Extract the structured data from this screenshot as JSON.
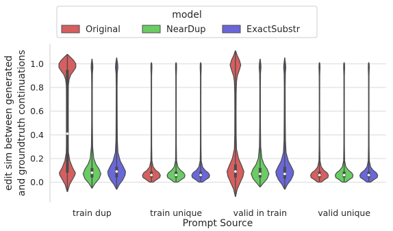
{
  "chart_data": {
    "type": "violin",
    "legend_title": "model",
    "legend_placement": "top",
    "xlabel": "Prompt Source",
    "ylabel_lines": [
      "edit sim between generated",
      "and groundtruth continuations"
    ],
    "ylim": [
      -0.17,
      1.17
    ],
    "yticks": [
      0.0,
      0.2,
      0.4,
      0.6,
      0.8,
      1.0
    ],
    "ytick_labels": [
      "0.0",
      "0.2",
      "0.4",
      "0.6",
      "0.8",
      "1.0"
    ],
    "grid": "horizontal",
    "categories": [
      "train dup",
      "train unique",
      "valid in train",
      "valid unique"
    ],
    "series": [
      {
        "name": "Original",
        "color": "#d65f5f",
        "violins": [
          {
            "range": [
              -0.08,
              1.08
            ],
            "median": 0.41,
            "q1": 0.08,
            "q3": 0.95,
            "profile": [
              [
                -0.08,
                0.02
              ],
              [
                -0.02,
                0.25
              ],
              [
                0.02,
                0.55
              ],
              [
                0.06,
                0.85
              ],
              [
                0.08,
                0.9
              ],
              [
                0.12,
                0.6
              ],
              [
                0.18,
                0.28
              ],
              [
                0.25,
                0.12
              ],
              [
                0.35,
                0.09
              ],
              [
                0.5,
                0.08
              ],
              [
                0.65,
                0.08
              ],
              [
                0.75,
                0.09
              ],
              [
                0.82,
                0.12
              ],
              [
                0.87,
                0.2
              ],
              [
                0.91,
                0.4
              ],
              [
                0.94,
                0.7
              ],
              [
                0.97,
                0.95
              ],
              [
                1.0,
                0.95
              ],
              [
                1.03,
                0.7
              ],
              [
                1.06,
                0.3
              ],
              [
                1.08,
                0.02
              ]
            ]
          },
          {
            "range": [
              0.0,
              1.01
            ],
            "median": 0.06,
            "q1": 0.04,
            "q3": 0.09,
            "profile": [
              [
                0.0,
                0.2
              ],
              [
                0.02,
                0.55
              ],
              [
                0.04,
                0.95
              ],
              [
                0.06,
                1.0
              ],
              [
                0.08,
                0.85
              ],
              [
                0.1,
                0.5
              ],
              [
                0.13,
                0.2
              ],
              [
                0.18,
                0.06
              ],
              [
                0.3,
                0.035
              ],
              [
                0.6,
                0.025
              ],
              [
                0.9,
                0.03
              ],
              [
                0.97,
                0.06
              ],
              [
                1.0,
                0.05
              ],
              [
                1.01,
                0.01
              ]
            ]
          },
          {
            "range": [
              -0.12,
              1.11
            ],
            "median": 0.09,
            "q1": 0.04,
            "q3": 0.15,
            "profile": [
              [
                -0.12,
                0.02
              ],
              [
                -0.06,
                0.2
              ],
              [
                0.0,
                0.55
              ],
              [
                0.05,
                0.85
              ],
              [
                0.09,
                0.95
              ],
              [
                0.14,
                0.7
              ],
              [
                0.2,
                0.35
              ],
              [
                0.28,
                0.12
              ],
              [
                0.4,
                0.08
              ],
              [
                0.6,
                0.07
              ],
              [
                0.75,
                0.08
              ],
              [
                0.85,
                0.12
              ],
              [
                0.9,
                0.22
              ],
              [
                0.95,
                0.45
              ],
              [
                0.99,
                0.6
              ],
              [
                1.03,
                0.45
              ],
              [
                1.07,
                0.2
              ],
              [
                1.11,
                0.02
              ]
            ]
          },
          {
            "range": [
              0.0,
              1.01
            ],
            "median": 0.06,
            "q1": 0.04,
            "q3": 0.09,
            "profile": [
              [
                0.0,
                0.2
              ],
              [
                0.02,
                0.55
              ],
              [
                0.04,
                0.95
              ],
              [
                0.06,
                1.0
              ],
              [
                0.08,
                0.85
              ],
              [
                0.1,
                0.5
              ],
              [
                0.13,
                0.2
              ],
              [
                0.18,
                0.06
              ],
              [
                0.3,
                0.035
              ],
              [
                0.6,
                0.025
              ],
              [
                0.9,
                0.03
              ],
              [
                0.97,
                0.06
              ],
              [
                1.0,
                0.05
              ],
              [
                1.01,
                0.01
              ]
            ]
          }
        ]
      },
      {
        "name": "NearDup",
        "color": "#6acc64",
        "violins": [
          {
            "range": [
              -0.05,
              1.04
            ],
            "median": 0.08,
            "q1": 0.04,
            "q3": 0.12,
            "profile": [
              [
                -0.05,
                0.02
              ],
              [
                -0.01,
                0.35
              ],
              [
                0.03,
                0.8
              ],
              [
                0.07,
                1.0
              ],
              [
                0.11,
                0.8
              ],
              [
                0.15,
                0.45
              ],
              [
                0.2,
                0.2
              ],
              [
                0.3,
                0.07
              ],
              [
                0.5,
                0.04
              ],
              [
                0.8,
                0.035
              ],
              [
                0.92,
                0.05
              ],
              [
                0.97,
                0.1
              ],
              [
                1.0,
                0.08
              ],
              [
                1.04,
                0.01
              ]
            ]
          },
          {
            "range": [
              0.0,
              1.01
            ],
            "median": 0.06,
            "q1": 0.04,
            "q3": 0.09,
            "profile": [
              [
                0.0,
                0.2
              ],
              [
                0.02,
                0.55
              ],
              [
                0.04,
                0.95
              ],
              [
                0.06,
                1.0
              ],
              [
                0.08,
                0.85
              ],
              [
                0.1,
                0.5
              ],
              [
                0.13,
                0.2
              ],
              [
                0.18,
                0.06
              ],
              [
                0.3,
                0.035
              ],
              [
                0.6,
                0.025
              ],
              [
                0.9,
                0.03
              ],
              [
                0.97,
                0.06
              ],
              [
                1.0,
                0.05
              ],
              [
                1.01,
                0.01
              ]
            ]
          },
          {
            "range": [
              -0.04,
              1.04
            ],
            "median": 0.07,
            "q1": 0.04,
            "q3": 0.12,
            "profile": [
              [
                -0.04,
                0.02
              ],
              [
                -0.01,
                0.35
              ],
              [
                0.03,
                0.8
              ],
              [
                0.07,
                1.0
              ],
              [
                0.11,
                0.8
              ],
              [
                0.15,
                0.45
              ],
              [
                0.2,
                0.2
              ],
              [
                0.3,
                0.07
              ],
              [
                0.5,
                0.04
              ],
              [
                0.8,
                0.035
              ],
              [
                0.92,
                0.05
              ],
              [
                0.97,
                0.1
              ],
              [
                1.0,
                0.08
              ],
              [
                1.04,
                0.01
              ]
            ]
          },
          {
            "range": [
              0.0,
              1.01
            ],
            "median": 0.06,
            "q1": 0.04,
            "q3": 0.09,
            "profile": [
              [
                0.0,
                0.2
              ],
              [
                0.02,
                0.55
              ],
              [
                0.04,
                0.95
              ],
              [
                0.06,
                1.0
              ],
              [
                0.08,
                0.85
              ],
              [
                0.1,
                0.5
              ],
              [
                0.13,
                0.2
              ],
              [
                0.18,
                0.06
              ],
              [
                0.3,
                0.035
              ],
              [
                0.6,
                0.025
              ],
              [
                0.9,
                0.03
              ],
              [
                0.97,
                0.06
              ],
              [
                1.0,
                0.05
              ],
              [
                1.01,
                0.01
              ]
            ]
          }
        ]
      },
      {
        "name": "ExactSubstr",
        "color": "#6a67d8",
        "violins": [
          {
            "range": [
              -0.06,
              1.05
            ],
            "median": 0.09,
            "q1": 0.04,
            "q3": 0.13,
            "profile": [
              [
                -0.06,
                0.02
              ],
              [
                -0.02,
                0.3
              ],
              [
                0.02,
                0.7
              ],
              [
                0.06,
                0.95
              ],
              [
                0.09,
                1.0
              ],
              [
                0.13,
                0.75
              ],
              [
                0.18,
                0.4
              ],
              [
                0.25,
                0.15
              ],
              [
                0.35,
                0.08
              ],
              [
                0.55,
                0.06
              ],
              [
                0.8,
                0.05
              ],
              [
                0.92,
                0.07
              ],
              [
                0.97,
                0.14
              ],
              [
                1.0,
                0.11
              ],
              [
                1.05,
                0.01
              ]
            ]
          },
          {
            "range": [
              0.0,
              1.01
            ],
            "median": 0.06,
            "q1": 0.04,
            "q3": 0.09,
            "profile": [
              [
                0.0,
                0.2
              ],
              [
                0.02,
                0.55
              ],
              [
                0.04,
                0.95
              ],
              [
                0.06,
                1.0
              ],
              [
                0.08,
                0.85
              ],
              [
                0.1,
                0.5
              ],
              [
                0.13,
                0.2
              ],
              [
                0.18,
                0.06
              ],
              [
                0.3,
                0.035
              ],
              [
                0.6,
                0.025
              ],
              [
                0.9,
                0.03
              ],
              [
                0.97,
                0.06
              ],
              [
                1.0,
                0.05
              ],
              [
                1.01,
                0.01
              ]
            ]
          },
          {
            "range": [
              -0.06,
              1.05
            ],
            "median": 0.07,
            "q1": 0.03,
            "q3": 0.13,
            "profile": [
              [
                -0.06,
                0.02
              ],
              [
                -0.02,
                0.3
              ],
              [
                0.02,
                0.7
              ],
              [
                0.06,
                0.95
              ],
              [
                0.09,
                1.0
              ],
              [
                0.13,
                0.75
              ],
              [
                0.18,
                0.4
              ],
              [
                0.25,
                0.15
              ],
              [
                0.35,
                0.08
              ],
              [
                0.55,
                0.06
              ],
              [
                0.8,
                0.05
              ],
              [
                0.92,
                0.07
              ],
              [
                0.97,
                0.12
              ],
              [
                1.0,
                0.09
              ],
              [
                1.05,
                0.01
              ]
            ]
          },
          {
            "range": [
              0.0,
              1.01
            ],
            "median": 0.06,
            "q1": 0.04,
            "q3": 0.09,
            "profile": [
              [
                0.0,
                0.2
              ],
              [
                0.02,
                0.55
              ],
              [
                0.04,
                0.95
              ],
              [
                0.06,
                1.0
              ],
              [
                0.08,
                0.85
              ],
              [
                0.1,
                0.5
              ],
              [
                0.13,
                0.2
              ],
              [
                0.18,
                0.06
              ],
              [
                0.3,
                0.035
              ],
              [
                0.6,
                0.025
              ],
              [
                0.9,
                0.03
              ],
              [
                0.97,
                0.06
              ],
              [
                1.0,
                0.05
              ],
              [
                1.01,
                0.01
              ]
            ]
          }
        ]
      }
    ]
  }
}
